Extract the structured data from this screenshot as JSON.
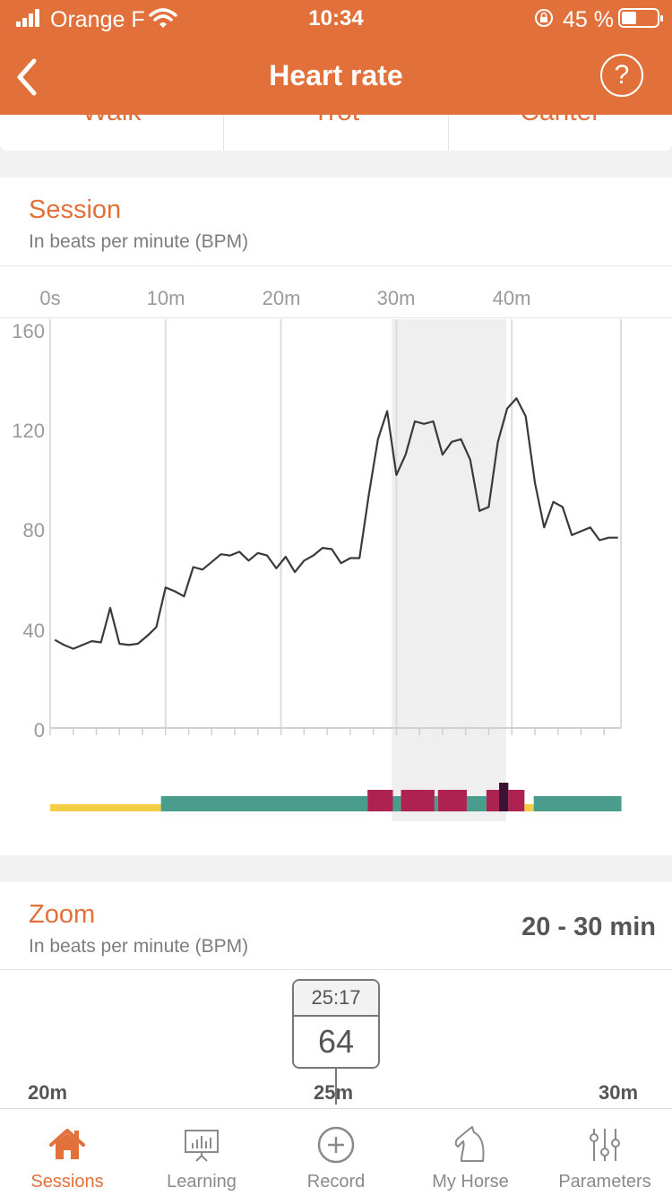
{
  "status_bar": {
    "carrier": "Orange F",
    "time": "10:34",
    "battery": "45 %"
  },
  "nav": {
    "title": "Heart rate",
    "help_glyph": "?"
  },
  "gaits": [
    "Walk",
    "Trot",
    "Canter"
  ],
  "session": {
    "title": "Session",
    "subtitle": "In beats per minute (BPM)",
    "chart_data": {
      "type": "line",
      "x_unit": "minutes",
      "x_ticks": [
        "0s",
        "10m",
        "20m",
        "30m",
        "40m"
      ],
      "y_ticks": [
        "0",
        "40",
        "80",
        "120",
        "160"
      ],
      "ylim": [
        0,
        160
      ],
      "xlim": [
        0,
        49.5
      ],
      "highlight_range_min": [
        29.6,
        39.5
      ],
      "series": [
        {
          "x": [
            0.4,
            1.2,
            2,
            2.8,
            3.6,
            4.4,
            5.2,
            6,
            6.8,
            7.6,
            8.4,
            9.2,
            10,
            10.8,
            11.6,
            12.4,
            13.2,
            14,
            14.8,
            15.6,
            16.4,
            17.2,
            18,
            18.8,
            19.6,
            20.4,
            21.2,
            22,
            22.8,
            23.6,
            24.4,
            25.2,
            26,
            26.8,
            27.6,
            28.4,
            29.2,
            30,
            30.8,
            31.6,
            32.4,
            33.2,
            34,
            34.8,
            35.6,
            36.4,
            37.2,
            38,
            38.8,
            39.6,
            40.4,
            41.2,
            42,
            42.8,
            43.6,
            44.4,
            45.2,
            46,
            46.8,
            47.6,
            48.4,
            49.2
          ],
          "y": [
            34.5,
            32.5,
            31,
            32.5,
            34,
            33.5,
            47,
            33,
            32.5,
            33,
            36,
            39.5,
            55,
            53.5,
            51.5,
            63,
            62,
            65,
            68,
            67.5,
            69,
            65.5,
            68.5,
            67.5,
            62.5,
            67,
            61,
            65.5,
            67.5,
            70.5,
            70,
            64.5,
            66.5,
            66.5,
            91,
            113,
            124,
            99,
            107,
            120,
            119,
            120,
            107,
            112,
            113,
            105,
            85,
            86.5,
            112,
            125,
            129,
            122,
            96,
            78.5,
            88.5,
            86.5,
            75.5,
            77,
            78.5,
            73.5,
            74.5,
            74.5
          ]
        }
      ]
    },
    "gait_colors": {
      "walk": "#f2cd45",
      "trot": "#4a9c8c",
      "canter": "#ad2250",
      "gallop": "#3b1333"
    },
    "gait_timeline": [
      {
        "gait": "walk",
        "start": 0,
        "end": 9.6
      },
      {
        "gait": "trot",
        "start": 9.6,
        "end": 27.5
      },
      {
        "gait": "canter",
        "start": 27.5,
        "end": 29.7
      },
      {
        "gait": "trot",
        "start": 29.7,
        "end": 30.4
      },
      {
        "gait": "canter",
        "start": 30.4,
        "end": 33.3
      },
      {
        "gait": "trot",
        "start": 33.3,
        "end": 33.6
      },
      {
        "gait": "canter",
        "start": 33.6,
        "end": 36.1
      },
      {
        "gait": "trot",
        "start": 36.1,
        "end": 37.8
      },
      {
        "gait": "canter",
        "start": 37.8,
        "end": 38.9
      },
      {
        "gait": "gallop",
        "start": 38.9,
        "end": 39.7
      },
      {
        "gait": "canter",
        "start": 39.7,
        "end": 41.1
      },
      {
        "gait": "walk",
        "start": 41.1,
        "end": 41.9
      },
      {
        "gait": "trot",
        "start": 41.9,
        "end": 49.5
      }
    ]
  },
  "zoom": {
    "title": "Zoom",
    "subtitle": "In beats per minute (BPM)",
    "range": "20 - 30 min",
    "tooltip_time": "25:17",
    "tooltip_value": "64",
    "ticks": [
      "20m",
      "25m",
      "30m"
    ]
  },
  "tabs": [
    {
      "label": "Sessions",
      "icon": "home-icon",
      "active": true
    },
    {
      "label": "Learning",
      "icon": "presentation-board-icon",
      "active": false
    },
    {
      "label": "Record",
      "icon": "plus-circle-icon",
      "active": false
    },
    {
      "label": "My Horse",
      "icon": "horse-head-icon",
      "active": false
    },
    {
      "label": "Parameters",
      "icon": "sliders-icon",
      "active": false
    }
  ],
  "colors": {
    "accent": "#e2703a",
    "line": "#3a3a3a",
    "highlight": "#eeefee"
  }
}
